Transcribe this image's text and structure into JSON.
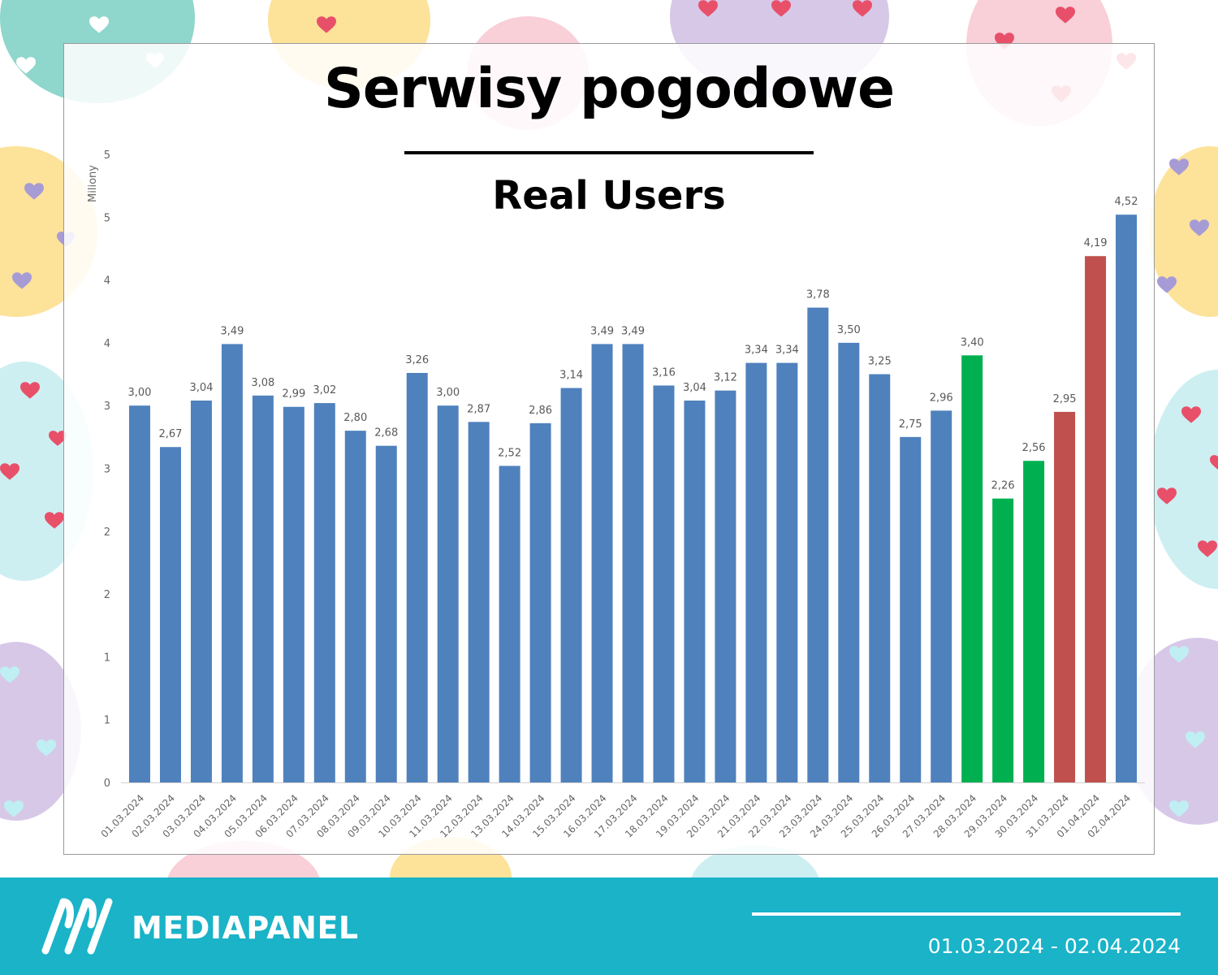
{
  "header": {
    "title": "Serwisy pogodowe",
    "subtitle": "Real Users"
  },
  "footer": {
    "brand": "MEDIAPANEL",
    "date_range": "01.03.2024 - 02.04.2024"
  },
  "colors": {
    "bar_default": "#4f81bd",
    "bar_easter": "#00b050",
    "bar_after": "#c0504d",
    "footer_bg": "#1ab3c8"
  },
  "chart_data": {
    "type": "bar",
    "ylabel": "Miliony",
    "yticks": [
      "0",
      "1",
      "1",
      "2",
      "2",
      "3",
      "3",
      "4",
      "4",
      "5",
      "5"
    ],
    "ylim": [
      0,
      5
    ],
    "grid": false,
    "categories": [
      "01.03.2024",
      "02.03.2024",
      "03.03.2024",
      "04.03.2024",
      "05.03.2024",
      "06.03.2024",
      "07.03.2024",
      "08.03.2024",
      "09.03.2024",
      "10.03.2024",
      "11.03.2024",
      "12.03.2024",
      "13.03.2024",
      "14.03.2024",
      "15.03.2024",
      "16.03.2024",
      "17.03.2024",
      "18.03.2024",
      "19.03.2024",
      "20.03.2024",
      "21.03.2024",
      "22.03.2024",
      "23.03.2024",
      "24.03.2024",
      "25.03.2024",
      "26.03.2024",
      "27.03.2024",
      "28.03.2024",
      "29.03.2024",
      "30.03.2024",
      "31.03.2024",
      "01.04.2024",
      "02.04.2024"
    ],
    "values": [
      3.0,
      2.67,
      3.04,
      3.49,
      3.08,
      2.99,
      3.02,
      2.8,
      2.68,
      3.26,
      3.0,
      2.87,
      2.52,
      2.86,
      3.14,
      3.49,
      3.49,
      3.16,
      3.04,
      3.12,
      3.34,
      3.34,
      3.78,
      3.5,
      3.25,
      2.75,
      2.96,
      3.4,
      2.26,
      2.56,
      2.95,
      4.19,
      4.52
    ],
    "value_labels": [
      "3,00",
      "2,67",
      "3,04",
      "3,49",
      "3,08",
      "2,99",
      "3,02",
      "2,80",
      "2,68",
      "3,26",
      "3,00",
      "2,87",
      "2,52",
      "2,86",
      "3,14",
      "3,49",
      "3,49",
      "3,16",
      "3,04",
      "3,12",
      "3,34",
      "3,34",
      "3,78",
      "3,50",
      "3,25",
      "2,75",
      "2,96",
      "3,40",
      "2,26",
      "2,56",
      "2,95",
      "4,19",
      "4,52"
    ],
    "bar_colors": [
      "#4f81bd",
      "#4f81bd",
      "#4f81bd",
      "#4f81bd",
      "#4f81bd",
      "#4f81bd",
      "#4f81bd",
      "#4f81bd",
      "#4f81bd",
      "#4f81bd",
      "#4f81bd",
      "#4f81bd",
      "#4f81bd",
      "#4f81bd",
      "#4f81bd",
      "#4f81bd",
      "#4f81bd",
      "#4f81bd",
      "#4f81bd",
      "#4f81bd",
      "#4f81bd",
      "#4f81bd",
      "#4f81bd",
      "#4f81bd",
      "#4f81bd",
      "#4f81bd",
      "#4f81bd",
      "#00b050",
      "#00b050",
      "#00b050",
      "#c0504d",
      "#c0504d",
      "#4f81bd"
    ]
  }
}
